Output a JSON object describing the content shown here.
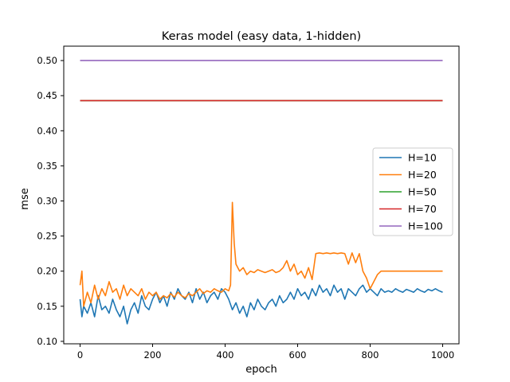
{
  "chart_data": {
    "type": "line",
    "title": "Keras model (easy data, 1-hidden)",
    "xlabel": "epoch",
    "ylabel": "mse",
    "xlim": [
      -45,
      1045
    ],
    "ylim": [
      0.0965,
      0.5205
    ],
    "xticks": [
      0,
      200,
      400,
      600,
      800,
      1000
    ],
    "yticks": [
      0.1,
      0.15,
      0.2,
      0.25,
      0.3,
      0.35,
      0.4,
      0.45,
      0.5
    ],
    "ytick_labels": [
      "0.10",
      "0.15",
      "0.20",
      "0.25",
      "0.30",
      "0.35",
      "0.40",
      "0.45",
      "0.50"
    ],
    "grid": false,
    "legend": "center-right",
    "series": [
      {
        "name": "H=10",
        "color": "#1f77b4",
        "x": [
          0,
          5,
          10,
          20,
          30,
          40,
          50,
          60,
          70,
          80,
          90,
          100,
          110,
          120,
          130,
          140,
          150,
          160,
          170,
          180,
          190,
          200,
          210,
          220,
          230,
          240,
          250,
          260,
          270,
          280,
          290,
          300,
          310,
          320,
          330,
          340,
          350,
          360,
          370,
          380,
          390,
          400,
          410,
          420,
          430,
          440,
          450,
          460,
          470,
          480,
          490,
          500,
          510,
          520,
          530,
          540,
          550,
          560,
          570,
          580,
          590,
          600,
          610,
          620,
          630,
          640,
          650,
          660,
          670,
          680,
          690,
          700,
          710,
          720,
          730,
          740,
          750,
          760,
          770,
          780,
          790,
          800,
          810,
          820,
          830,
          840,
          850,
          860,
          870,
          880,
          890,
          900,
          910,
          920,
          930,
          940,
          950,
          960,
          970,
          980,
          990,
          1000
        ],
        "y": [
          0.16,
          0.135,
          0.15,
          0.14,
          0.155,
          0.135,
          0.165,
          0.145,
          0.15,
          0.14,
          0.16,
          0.145,
          0.135,
          0.15,
          0.125,
          0.145,
          0.155,
          0.14,
          0.165,
          0.15,
          0.145,
          0.16,
          0.17,
          0.155,
          0.165,
          0.15,
          0.17,
          0.16,
          0.175,
          0.165,
          0.16,
          0.17,
          0.155,
          0.175,
          0.16,
          0.17,
          0.155,
          0.165,
          0.17,
          0.16,
          0.175,
          0.17,
          0.16,
          0.145,
          0.155,
          0.14,
          0.15,
          0.135,
          0.155,
          0.145,
          0.16,
          0.15,
          0.145,
          0.155,
          0.16,
          0.15,
          0.165,
          0.155,
          0.16,
          0.17,
          0.16,
          0.175,
          0.165,
          0.17,
          0.16,
          0.175,
          0.165,
          0.18,
          0.17,
          0.175,
          0.165,
          0.18,
          0.17,
          0.175,
          0.16,
          0.175,
          0.17,
          0.165,
          0.175,
          0.18,
          0.17,
          0.175,
          0.17,
          0.165,
          0.175,
          0.17,
          0.172,
          0.17,
          0.175,
          0.172,
          0.17,
          0.174,
          0.172,
          0.17,
          0.175,
          0.172,
          0.17,
          0.174,
          0.172,
          0.175,
          0.172,
          0.17
        ]
      },
      {
        "name": "H=20",
        "color": "#ff7f0e",
        "x": [
          0,
          5,
          10,
          20,
          30,
          40,
          50,
          60,
          70,
          80,
          90,
          100,
          110,
          120,
          130,
          140,
          150,
          160,
          170,
          180,
          190,
          200,
          210,
          220,
          230,
          240,
          250,
          260,
          270,
          280,
          290,
          300,
          310,
          320,
          330,
          340,
          350,
          360,
          370,
          380,
          390,
          400,
          410,
          415,
          420,
          425,
          430,
          440,
          450,
          460,
          470,
          480,
          490,
          500,
          510,
          520,
          530,
          540,
          550,
          560,
          570,
          580,
          590,
          600,
          610,
          620,
          630,
          640,
          650,
          660,
          670,
          680,
          690,
          700,
          710,
          720,
          730,
          740,
          750,
          760,
          770,
          780,
          790,
          800,
          810,
          820,
          830,
          840,
          860,
          880,
          900,
          920,
          940,
          960,
          980,
          1000
        ],
        "y": [
          0.18,
          0.2,
          0.15,
          0.17,
          0.155,
          0.18,
          0.16,
          0.175,
          0.165,
          0.185,
          0.17,
          0.175,
          0.16,
          0.18,
          0.165,
          0.175,
          0.17,
          0.165,
          0.175,
          0.16,
          0.17,
          0.165,
          0.17,
          0.16,
          0.165,
          0.162,
          0.168,
          0.163,
          0.17,
          0.165,
          0.162,
          0.168,
          0.165,
          0.17,
          0.175,
          0.168,
          0.172,
          0.17,
          0.175,
          0.172,
          0.17,
          0.175,
          0.172,
          0.18,
          0.298,
          0.24,
          0.21,
          0.2,
          0.205,
          0.195,
          0.2,
          0.198,
          0.202,
          0.2,
          0.198,
          0.2,
          0.202,
          0.198,
          0.2,
          0.205,
          0.215,
          0.2,
          0.21,
          0.195,
          0.2,
          0.19,
          0.205,
          0.188,
          0.225,
          0.226,
          0.225,
          0.226,
          0.225,
          0.226,
          0.225,
          0.226,
          0.225,
          0.21,
          0.226,
          0.212,
          0.225,
          0.2,
          0.19,
          0.175,
          0.185,
          0.195,
          0.2,
          0.2,
          0.2,
          0.2,
          0.2,
          0.2,
          0.2,
          0.2,
          0.2,
          0.2
        ]
      },
      {
        "name": "H=50",
        "color": "#2ca02c",
        "x": [
          0,
          1000
        ],
        "y": [
          0.443,
          0.443
        ]
      },
      {
        "name": "H=70",
        "color": "#d62728",
        "x": [
          0,
          1000
        ],
        "y": [
          0.443,
          0.443
        ]
      },
      {
        "name": "H=100",
        "color": "#9467bd",
        "x": [
          0,
          1000
        ],
        "y": [
          0.5,
          0.5
        ]
      }
    ]
  }
}
